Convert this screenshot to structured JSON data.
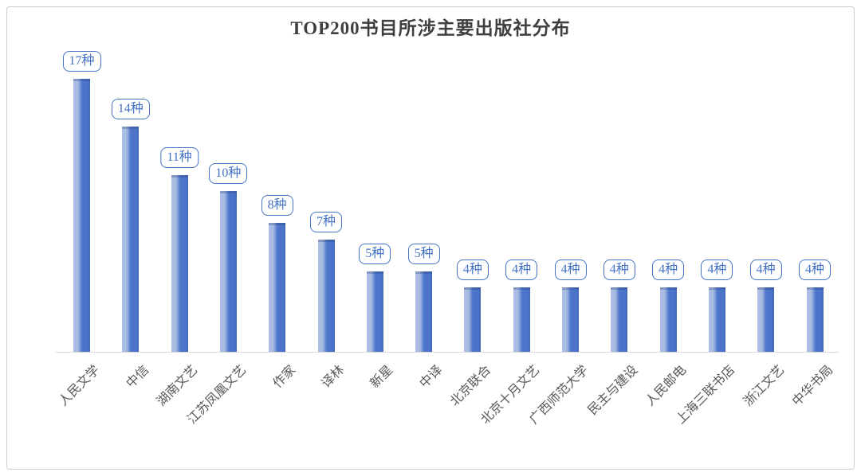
{
  "chart_data": {
    "type": "bar",
    "title": "TOP200书目所涉主要出版社分布",
    "categories": [
      "人民文学",
      "中信",
      "湖南文艺",
      "江苏凤凰文艺",
      "作家",
      "译林",
      "新星",
      "中译",
      "北京联合",
      "北京十月文艺",
      "广西师范大学",
      "民主与建设",
      "人民邮电",
      "上海三联书店",
      "浙江文艺",
      "中华书局"
    ],
    "values": [
      17,
      14,
      11,
      10,
      8,
      7,
      5,
      5,
      4,
      4,
      4,
      4,
      4,
      4,
      4,
      4
    ],
    "data_labels": [
      "17种",
      "14种",
      "11种",
      "10种",
      "8种",
      "7种",
      "5种",
      "5种",
      "4种",
      "4种",
      "4种",
      "4种",
      "4种",
      "4种",
      "4种",
      "4种"
    ],
    "unit_suffix": "种",
    "xlabel": "",
    "ylabel": "",
    "ylim": [
      0,
      17.5
    ],
    "grid": false,
    "legend": "none",
    "y_axis_visible": false,
    "bar_color": "#4a73c9",
    "bar_color_light": "#a6bae2",
    "label_box_color": "#4472c4",
    "title_color": "#3f3f3f",
    "axis_label_color": "#595959",
    "axis_line_color": "#d9d9d9",
    "frame_border_color": "#cdcdcd"
  }
}
